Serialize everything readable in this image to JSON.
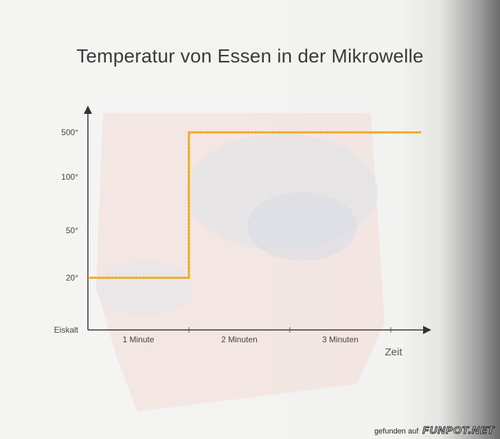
{
  "chart_data": {
    "type": "line",
    "title": "Temperatur von Essen in der Mikrowelle",
    "xlabel": "Zeit",
    "ylabel": "",
    "x_categories": [
      "1 Minute",
      "2 Minuten",
      "3 Minuten"
    ],
    "y_categories": [
      "Eiskalt",
      "20°",
      "50°",
      "100°",
      "500°"
    ],
    "series": [
      {
        "points": [
          {
            "x": 0,
            "y": "20°"
          },
          {
            "x": 1,
            "y": "20°"
          },
          {
            "x": 1,
            "y": "500°"
          },
          {
            "x": 3.3,
            "y": "500°"
          }
        ]
      }
    ],
    "colors": {
      "line": "#f2b31b",
      "line_dash": "#d9534a",
      "axis": "#333333"
    },
    "grid": false
  },
  "watermark": {
    "prefix": "gefunden auf",
    "brand": "FUNPOT.NET"
  }
}
